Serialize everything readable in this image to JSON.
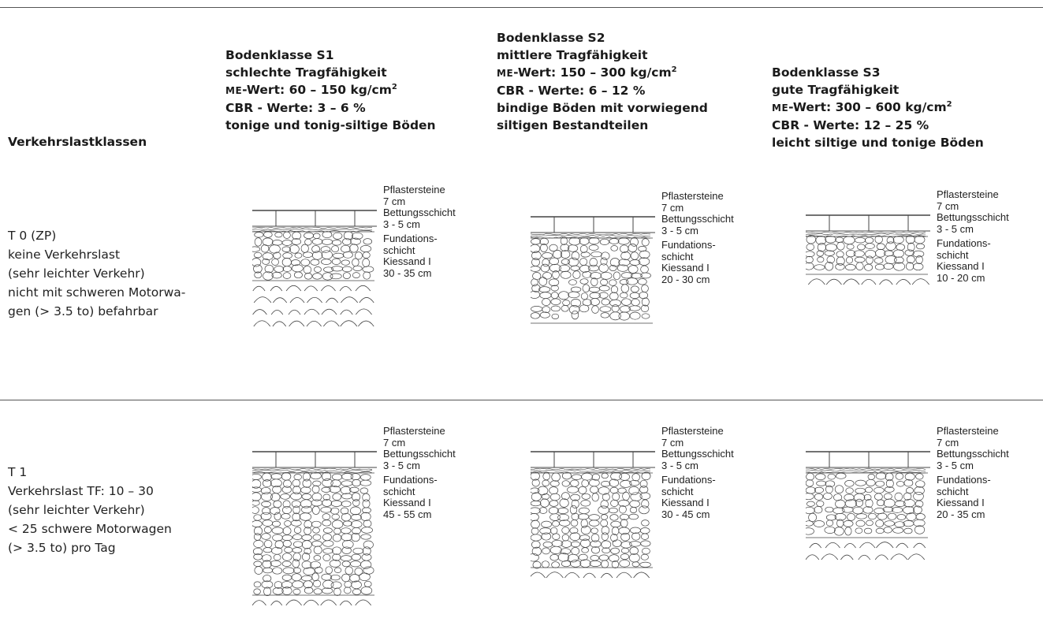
{
  "header": {
    "col0": "Verkehrslastklassen",
    "s1": {
      "line1": "Bodenklasse S1",
      "line2": "schlechte Tragfähigkeit",
      "me_prefix": "ME",
      "me_value": "-Wert: 60 – 150 kg/cm",
      "me_sup": "2",
      "cbr": "CBR - Werte: 3 – 6 %",
      "soil": "tonige und tonig-siltige Böden"
    },
    "s2": {
      "line1": "Bodenklasse S2",
      "line2": "mittlere Tragfähigkeit",
      "me_prefix": "ME",
      "me_value": "-Wert: 150 – 300 kg/cm",
      "me_sup": "2",
      "cbr": "CBR - Werte: 6 – 12 %",
      "soil1": "bindige Böden mit vorwiegend",
      "soil2": "siltigen Bestandteilen"
    },
    "s3": {
      "line1": "Bodenklasse S3",
      "line2": "gute Tragfähigkeit",
      "me_prefix": "ME",
      "me_value": "-Wert: 300 – 600 kg/cm",
      "me_sup": "2",
      "cbr": "CBR - Werte: 12 – 25 %",
      "soil": "leicht siltige und tonige Böden"
    }
  },
  "rows": [
    {
      "label": [
        "T 0 (ZP)",
        "keine Verkehrslast",
        "(sehr leichter Verkehr)",
        "nicht mit schweren Motorwa-",
        "gen (> 3.5 to) befahrbar"
      ],
      "cells": [
        {
          "l1": "Pflastersteine",
          "l2": "7 cm",
          "l3": "Bettungsschicht",
          "l4": "3 - 5 cm",
          "l5": "Fundations-",
          "l6": "schicht",
          "l7": "Kiessand I",
          "l8": "30 - 35 cm"
        },
        {
          "l1": "Pflastersteine",
          "l2": "7 cm",
          "l3": "Bettungsschicht",
          "l4": "3 - 5 cm",
          "l5": "Fundations-",
          "l6": "schicht",
          "l7": "Kiessand I",
          "l8": "20 - 30 cm"
        },
        {
          "l1": "Pflastersteine",
          "l2": "7 cm",
          "l3": "Bettungsschicht",
          "l4": "3 - 5 cm",
          "l5": "Fundations-",
          "l6": "schicht",
          "l7": "Kiessand I",
          "l8": "10 - 20 cm"
        }
      ]
    },
    {
      "label": [
        "T 1",
        "Verkehrslast TF: 10 – 30",
        "(sehr leichter Verkehr)",
        "< 25 schwere Motorwagen",
        "(> 3.5 to) pro Tag"
      ],
      "cells": [
        {
          "l1": "Pflastersteine",
          "l2": "7 cm",
          "l3": "Bettungsschicht",
          "l4": "3 - 5 cm",
          "l5": "Fundations-",
          "l6": "schicht",
          "l7": "Kiessand I",
          "l8": "45 - 55 cm"
        },
        {
          "l1": "Pflastersteine",
          "l2": "7 cm",
          "l3": "Bettungsschicht",
          "l4": "3 - 5 cm",
          "l5": "Fundations-",
          "l6": "schicht",
          "l7": "Kiessand I",
          "l8": "30 - 45 cm"
        },
        {
          "l1": "Pflastersteine",
          "l2": "7 cm",
          "l3": "Bettungsschicht",
          "l4": "3 - 5 cm",
          "l5": "Fundations-",
          "l6": "schicht",
          "l7": "Kiessand I",
          "l8": "20 - 35 cm"
        }
      ]
    }
  ]
}
